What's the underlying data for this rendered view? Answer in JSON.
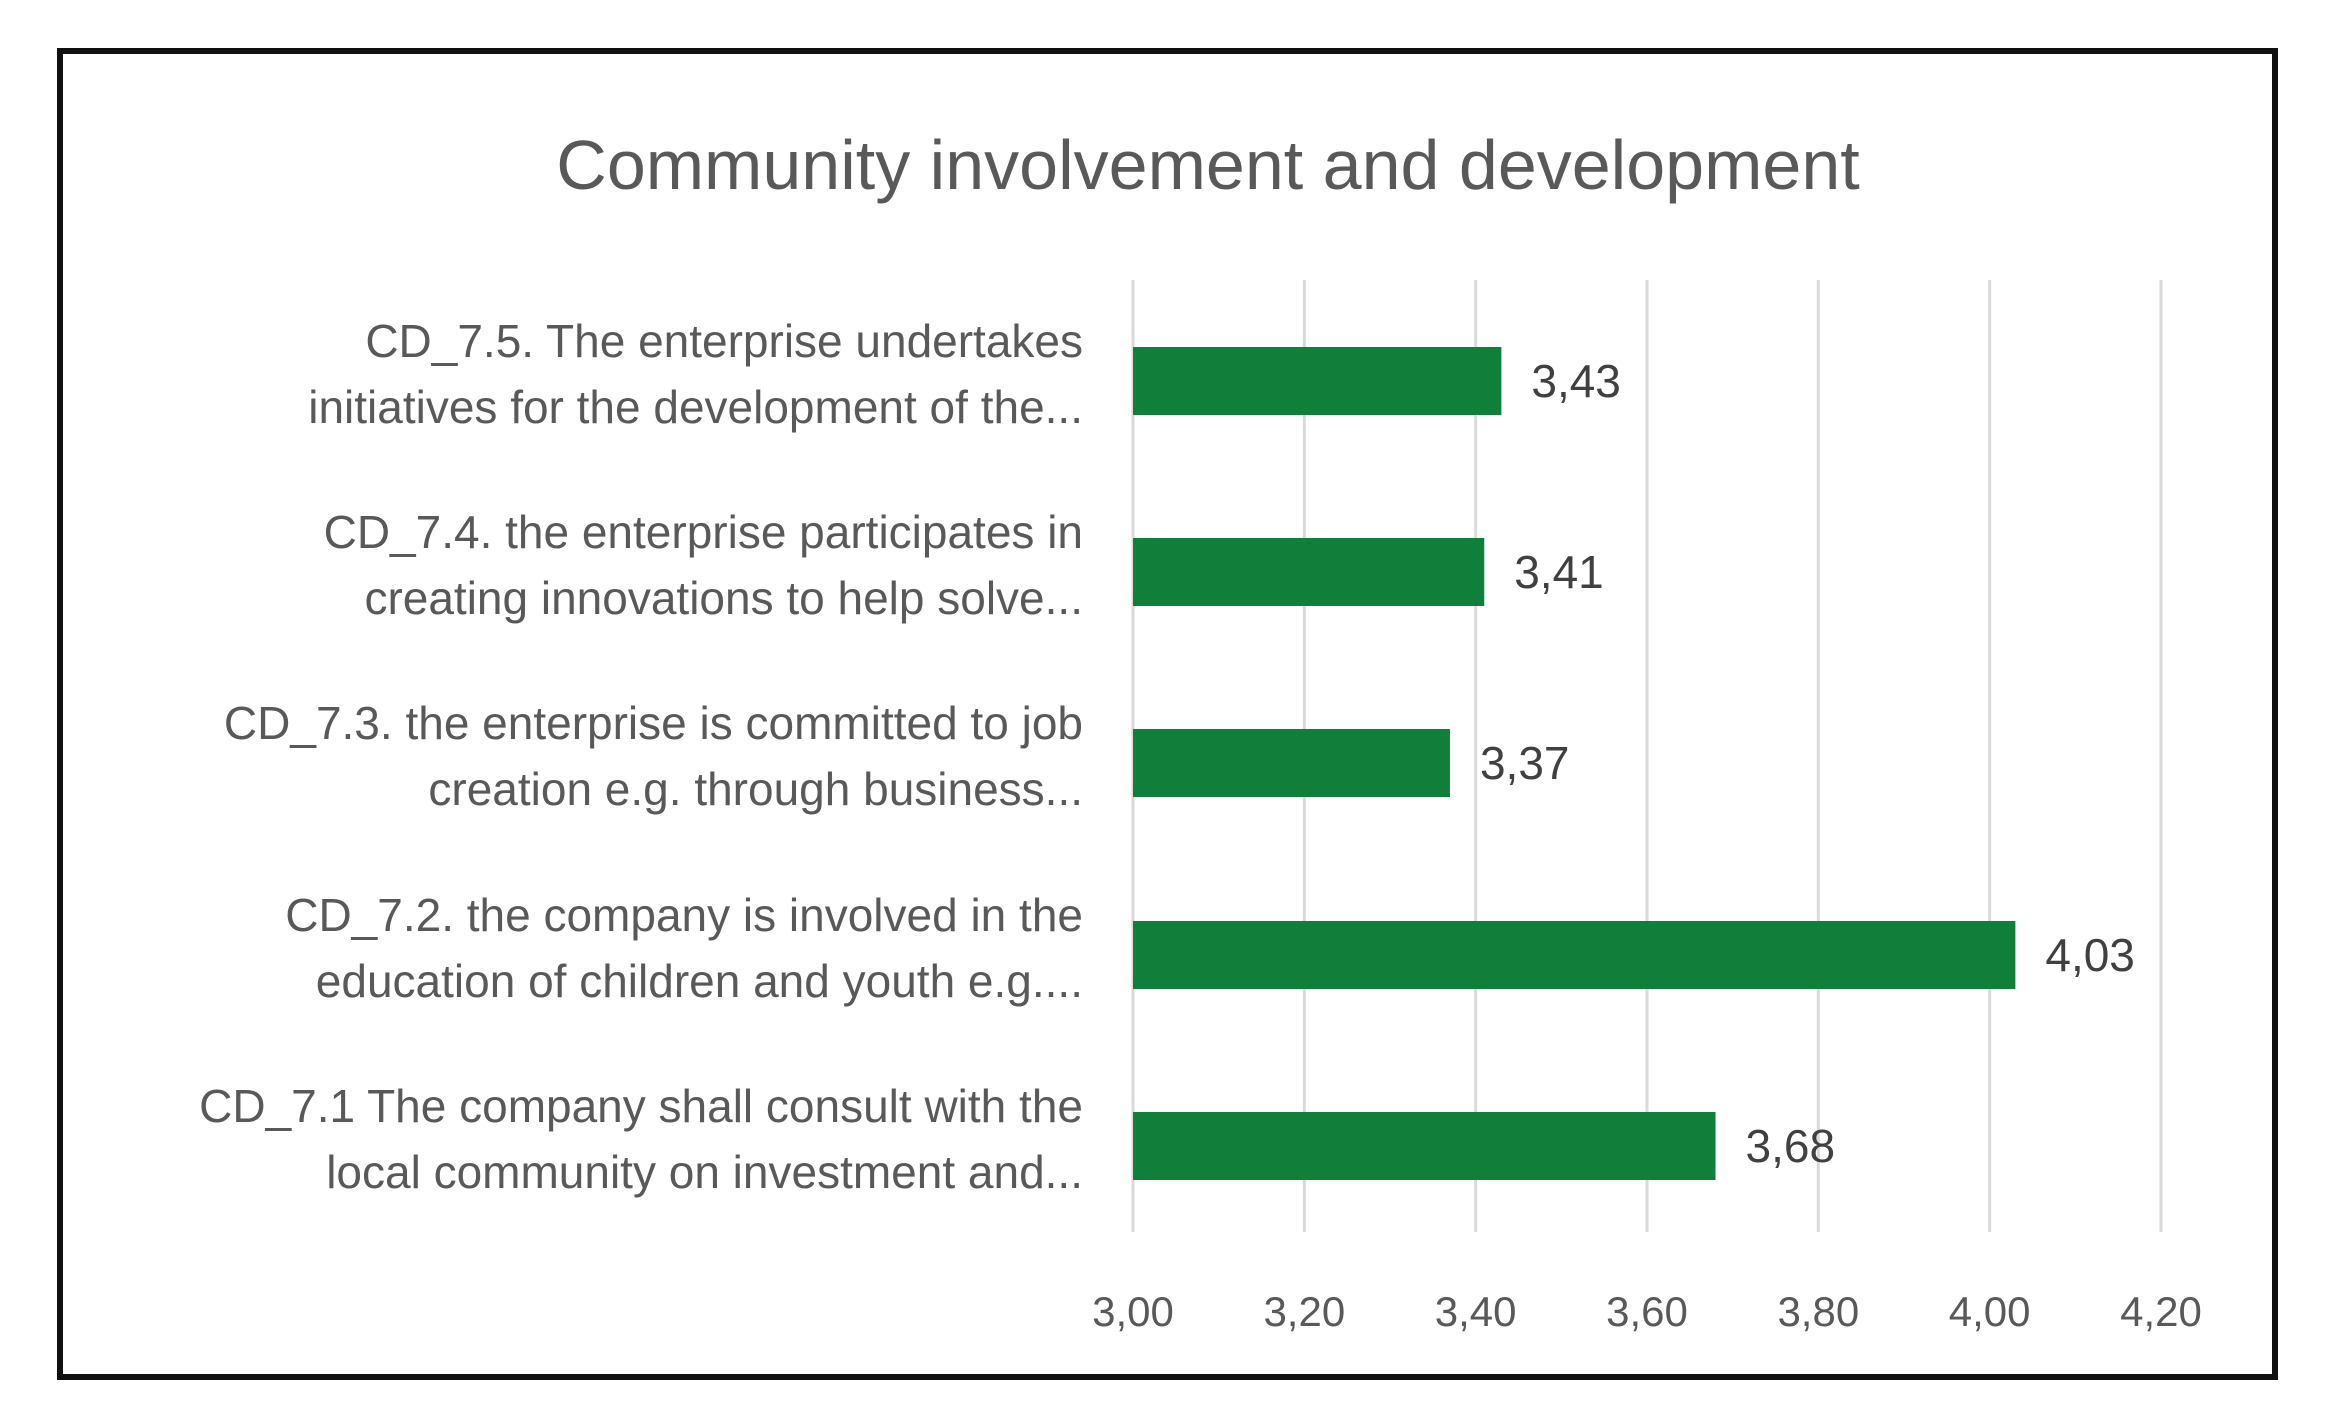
{
  "chart_data": {
    "type": "bar",
    "orientation": "horizontal",
    "title": "Community involvement and development",
    "categories": [
      [
        "CD_7.5. The enterprise undertakes",
        "initiatives for the development of the..."
      ],
      [
        "CD_7.4. the enterprise participates in",
        "creating innovations to help solve..."
      ],
      [
        "CD_7.3. the enterprise is committed to job",
        "creation e.g. through business..."
      ],
      [
        "CD_7.2. the company is involved in the",
        "education of children and youth e.g...."
      ],
      [
        "CD_7.1 The company shall consult with the",
        "local community on investment and..."
      ]
    ],
    "values": [
      3.43,
      3.41,
      3.37,
      4.03,
      3.68
    ],
    "value_labels": [
      "3,43",
      "3,41",
      "3,37",
      "4,03",
      "3,68"
    ],
    "xlim": [
      3.0,
      4.2
    ],
    "ticks": [
      3.0,
      3.2,
      3.4,
      3.6,
      3.8,
      4.0,
      4.2
    ],
    "tick_labels": [
      "3,00",
      "3,20",
      "3,40",
      "3,60",
      "3,80",
      "4,00",
      "4,20"
    ],
    "grid": "vertical",
    "legend": "none",
    "bar_color": "#0f7f3a"
  }
}
